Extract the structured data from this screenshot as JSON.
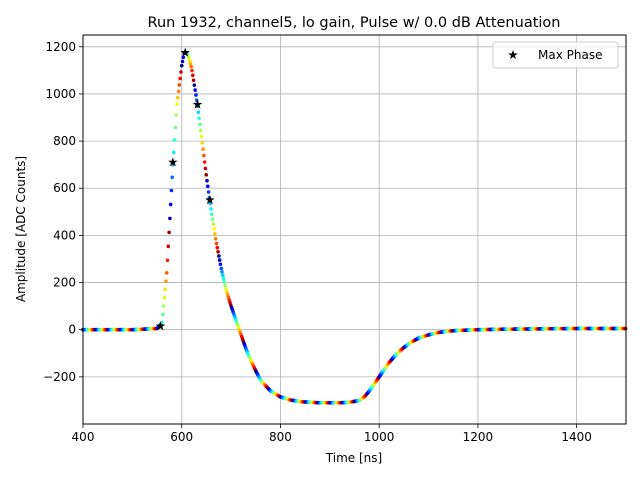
{
  "chart_data": {
    "type": "scatter",
    "title": "Run 1932, channel5, lo gain, Pulse w/ 0.0 dB Attenuation",
    "xlabel": "Time [ns]",
    "ylabel": "Amplitude [ADC Counts]",
    "xlim": [
      400,
      1500
    ],
    "ylim": [
      -400,
      1250
    ],
    "xticks": [
      400,
      600,
      800,
      1000,
      1200,
      1400
    ],
    "yticks": [
      -200,
      0,
      200,
      400,
      600,
      800,
      1000,
      1200
    ],
    "xtick_labels": [
      "400",
      "600",
      "800",
      "1000",
      "1200",
      "1400"
    ],
    "ytick_labels": [
      "−200",
      "0",
      "200",
      "400",
      "600",
      "800",
      "1000",
      "1200"
    ],
    "grid": true,
    "legend": {
      "position": "top-right",
      "entries": [
        "Max Phase"
      ]
    },
    "series": [
      {
        "name": "Max Phase",
        "marker": "star",
        "color": "#000000",
        "x": [
          557,
          582,
          607,
          632,
          657
        ],
        "y": [
          15,
          710,
          1175,
          955,
          550
        ]
      }
    ],
    "waveform": {
      "marker": "dot",
      "colormap": "jet",
      "x": [
        400,
        500,
        550,
        560,
        570,
        580,
        590,
        600,
        605,
        612,
        620,
        630,
        640,
        650,
        660,
        670,
        680,
        690,
        700,
        710,
        720,
        730,
        740,
        750,
        760,
        780,
        800,
        820,
        840,
        860,
        880,
        900,
        920,
        940,
        960,
        970,
        980,
        990,
        1000,
        1010,
        1020,
        1030,
        1040,
        1050,
        1060,
        1080,
        1100,
        1120,
        1140,
        1160,
        1200,
        1250,
        1300,
        1400,
        1500
      ],
      "y": [
        0,
        0,
        5,
        30,
        250,
        620,
        950,
        1120,
        1175,
        1170,
        1110,
        980,
        820,
        650,
        500,
        370,
        260,
        170,
        100,
        40,
        -20,
        -80,
        -130,
        -175,
        -215,
        -260,
        -285,
        -298,
        -305,
        -308,
        -310,
        -310,
        -310,
        -308,
        -300,
        -285,
        -260,
        -230,
        -200,
        -170,
        -140,
        -115,
        -95,
        -75,
        -60,
        -35,
        -22,
        -12,
        -6,
        -3,
        0,
        2,
        3,
        5,
        5
      ]
    }
  }
}
